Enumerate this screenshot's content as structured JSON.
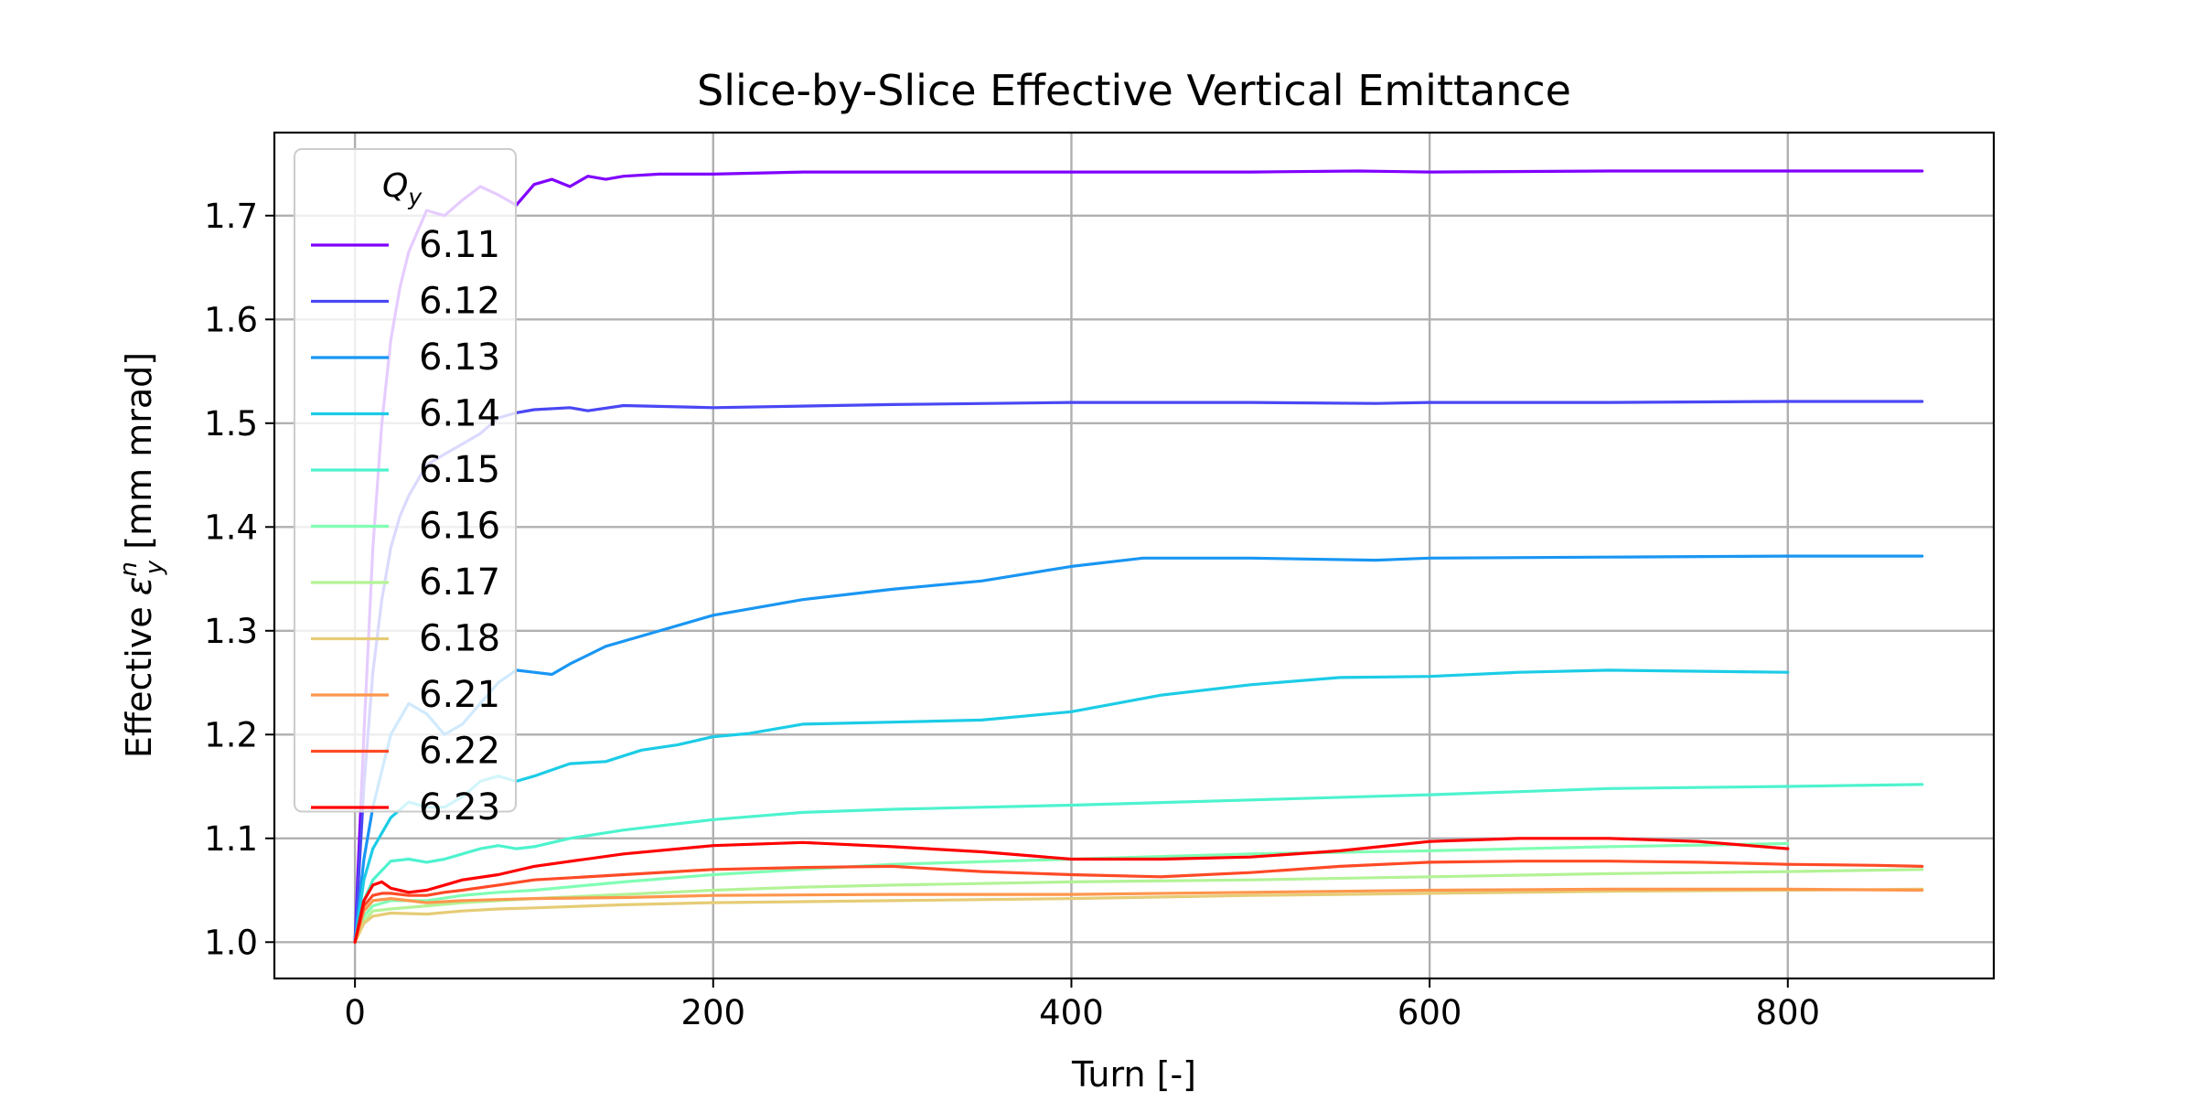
{
  "chart_data": {
    "type": "line",
    "title": "Slice-by-Slice Effective Vertical Emittance",
    "xlabel": "Turn [-]",
    "ylabel": {
      "prefix": "Effective ",
      "symbol": "ε",
      "sub": "y",
      "sup": "n",
      "suffix": " [mm mrad]"
    },
    "xlim": [
      -45,
      915
    ],
    "ylim": [
      0.965,
      1.78
    ],
    "xticks": [
      0,
      200,
      400,
      600,
      800
    ],
    "yticks": [
      1.0,
      1.1,
      1.2,
      1.3,
      1.4,
      1.5,
      1.6,
      1.7
    ],
    "xtick_labels": [
      "0",
      "200",
      "400",
      "600",
      "800"
    ],
    "ytick_labels": [
      "1.0",
      "1.1",
      "1.2",
      "1.3",
      "1.4",
      "1.5",
      "1.6",
      "1.7"
    ],
    "grid": true,
    "legend": {
      "title": "Q",
      "title_sub": "y",
      "position": "upper-left"
    },
    "series": [
      {
        "name": "6.11",
        "color": "#8000ff",
        "x": [
          0,
          5,
          10,
          15,
          20,
          25,
          30,
          40,
          50,
          60,
          70,
          80,
          90,
          100,
          110,
          120,
          130,
          140,
          150,
          170,
          200,
          250,
          300,
          400,
          500,
          560,
          600,
          700,
          800,
          875
        ],
        "y": [
          1.0,
          1.2,
          1.38,
          1.5,
          1.58,
          1.63,
          1.665,
          1.705,
          1.7,
          1.715,
          1.728,
          1.72,
          1.71,
          1.73,
          1.735,
          1.728,
          1.738,
          1.735,
          1.738,
          1.74,
          1.74,
          1.742,
          1.742,
          1.742,
          1.742,
          1.743,
          1.742,
          1.743,
          1.743,
          1.743
        ]
      },
      {
        "name": "6.12",
        "color": "#4a47f4",
        "x": [
          0,
          5,
          10,
          15,
          20,
          25,
          30,
          40,
          50,
          60,
          70,
          80,
          90,
          100,
          120,
          130,
          150,
          200,
          300,
          400,
          500,
          570,
          600,
          700,
          800,
          875
        ],
        "y": [
          1.0,
          1.15,
          1.26,
          1.33,
          1.38,
          1.41,
          1.43,
          1.46,
          1.47,
          1.48,
          1.49,
          1.505,
          1.51,
          1.513,
          1.515,
          1.512,
          1.517,
          1.515,
          1.518,
          1.52,
          1.52,
          1.519,
          1.52,
          1.52,
          1.521,
          1.521
        ]
      },
      {
        "name": "6.13",
        "color": "#1996f3",
        "x": [
          0,
          5,
          10,
          20,
          30,
          40,
          50,
          60,
          70,
          80,
          90,
          100,
          110,
          120,
          140,
          160,
          200,
          250,
          300,
          350,
          400,
          440,
          500,
          570,
          600,
          700,
          800,
          875
        ],
        "y": [
          1.0,
          1.08,
          1.13,
          1.2,
          1.23,
          1.22,
          1.2,
          1.21,
          1.23,
          1.25,
          1.262,
          1.26,
          1.258,
          1.268,
          1.285,
          1.295,
          1.315,
          1.33,
          1.34,
          1.348,
          1.362,
          1.37,
          1.37,
          1.368,
          1.37,
          1.371,
          1.372,
          1.372
        ]
      },
      {
        "name": "6.14",
        "color": "#1ccce6",
        "x": [
          0,
          5,
          10,
          20,
          30,
          40,
          50,
          60,
          70,
          80,
          90,
          100,
          120,
          140,
          160,
          180,
          200,
          220,
          250,
          300,
          350,
          400,
          450,
          500,
          550,
          600,
          650,
          700,
          800
        ],
        "y": [
          1.0,
          1.06,
          1.09,
          1.12,
          1.135,
          1.13,
          1.13,
          1.14,
          1.155,
          1.16,
          1.155,
          1.16,
          1.172,
          1.174,
          1.185,
          1.19,
          1.198,
          1.201,
          1.21,
          1.212,
          1.214,
          1.222,
          1.238,
          1.248,
          1.255,
          1.256,
          1.26,
          1.262,
          1.26
        ]
      },
      {
        "name": "6.15",
        "color": "#4df3ce",
        "x": [
          0,
          5,
          10,
          20,
          30,
          40,
          50,
          60,
          70,
          80,
          90,
          100,
          120,
          150,
          200,
          250,
          300,
          400,
          500,
          600,
          700,
          800,
          875
        ],
        "y": [
          1.0,
          1.04,
          1.06,
          1.078,
          1.08,
          1.077,
          1.08,
          1.085,
          1.09,
          1.093,
          1.09,
          1.092,
          1.1,
          1.108,
          1.118,
          1.125,
          1.128,
          1.132,
          1.137,
          1.142,
          1.148,
          1.15,
          1.152
        ]
      },
      {
        "name": "6.16",
        "color": "#80ffb4",
        "x": [
          0,
          5,
          10,
          20,
          40,
          60,
          80,
          100,
          150,
          200,
          250,
          300,
          400,
          500,
          600,
          700,
          800
        ],
        "y": [
          1.0,
          1.025,
          1.035,
          1.04,
          1.04,
          1.045,
          1.048,
          1.05,
          1.058,
          1.065,
          1.07,
          1.075,
          1.08,
          1.085,
          1.088,
          1.092,
          1.095
        ]
      },
      {
        "name": "6.17",
        "color": "#b3f396",
        "x": [
          0,
          5,
          10,
          20,
          40,
          60,
          80,
          100,
          150,
          200,
          250,
          300,
          400,
          500,
          600,
          700,
          800,
          875
        ],
        "y": [
          1.0,
          1.02,
          1.03,
          1.032,
          1.035,
          1.038,
          1.04,
          1.042,
          1.046,
          1.05,
          1.053,
          1.055,
          1.058,
          1.06,
          1.063,
          1.066,
          1.068,
          1.07
        ]
      },
      {
        "name": "6.18",
        "color": "#e6cc76",
        "x": [
          0,
          5,
          10,
          20,
          40,
          60,
          80,
          100,
          150,
          200,
          300,
          400,
          500,
          600,
          700,
          800,
          875
        ],
        "y": [
          1.0,
          1.018,
          1.025,
          1.028,
          1.027,
          1.03,
          1.032,
          1.033,
          1.036,
          1.038,
          1.04,
          1.042,
          1.045,
          1.047,
          1.049,
          1.05,
          1.051
        ]
      },
      {
        "name": "6.21",
        "color": "#ff964d",
        "x": [
          0,
          5,
          10,
          20,
          30,
          40,
          60,
          80,
          100,
          150,
          200,
          300,
          400,
          500,
          600,
          700,
          800,
          875
        ],
        "y": [
          1.0,
          1.03,
          1.04,
          1.042,
          1.04,
          1.038,
          1.04,
          1.041,
          1.042,
          1.043,
          1.045,
          1.046,
          1.046,
          1.048,
          1.05,
          1.051,
          1.051,
          1.05
        ]
      },
      {
        "name": "6.22",
        "color": "#ff4a26",
        "x": [
          0,
          5,
          10,
          15,
          20,
          30,
          40,
          50,
          60,
          80,
          100,
          150,
          200,
          250,
          300,
          350,
          400,
          450,
          500,
          550,
          600,
          650,
          700,
          750,
          800,
          850,
          875
        ],
        "y": [
          1.0,
          1.035,
          1.045,
          1.047,
          1.047,
          1.045,
          1.045,
          1.048,
          1.05,
          1.055,
          1.06,
          1.065,
          1.07,
          1.072,
          1.073,
          1.068,
          1.065,
          1.063,
          1.067,
          1.073,
          1.077,
          1.078,
          1.078,
          1.077,
          1.075,
          1.074,
          1.073
        ]
      },
      {
        "name": "6.23",
        "color": "#ff0000",
        "x": [
          0,
          5,
          10,
          15,
          20,
          30,
          40,
          50,
          60,
          80,
          100,
          150,
          200,
          250,
          300,
          350,
          400,
          450,
          500,
          550,
          600,
          650,
          700,
          750,
          800
        ],
        "y": [
          1.0,
          1.04,
          1.055,
          1.058,
          1.052,
          1.048,
          1.05,
          1.055,
          1.06,
          1.065,
          1.073,
          1.085,
          1.093,
          1.096,
          1.092,
          1.087,
          1.08,
          1.08,
          1.082,
          1.088,
          1.097,
          1.1,
          1.1,
          1.097,
          1.09
        ]
      }
    ]
  }
}
